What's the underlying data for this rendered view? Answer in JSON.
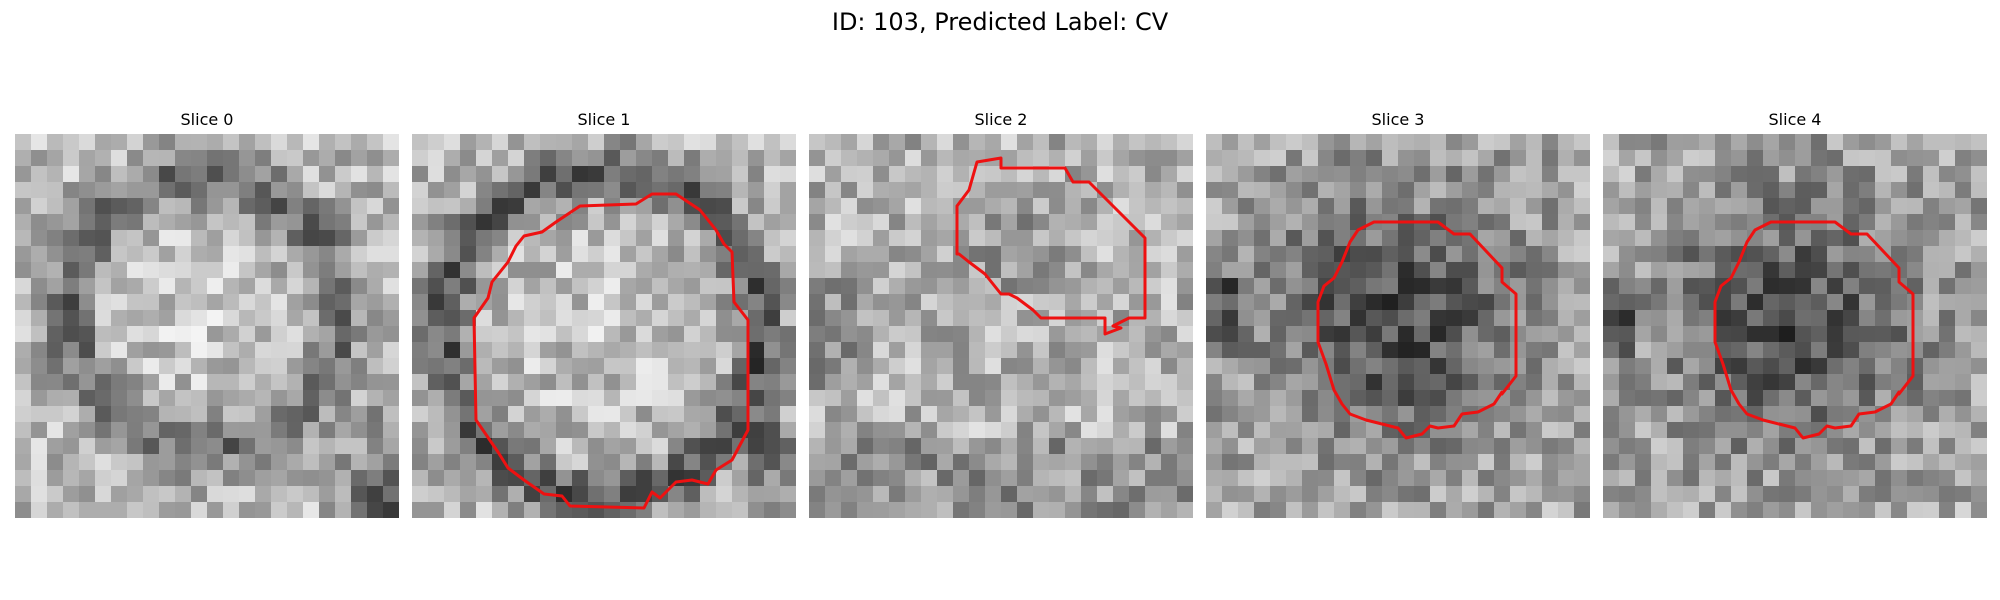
{
  "figure": {
    "title": "ID: 103, Predicted Label: CV"
  },
  "slices": [
    {
      "title": "Slice 0",
      "has_contour": false
    },
    {
      "title": "Slice 1",
      "has_contour": true
    },
    {
      "title": "Slice 2",
      "has_contour": true
    },
    {
      "title": "Slice 3",
      "has_contour": true
    },
    {
      "title": "Slice 4",
      "has_contour": true
    }
  ],
  "colors": {
    "contour": "#ee1111",
    "background": "#ffffff"
  }
}
